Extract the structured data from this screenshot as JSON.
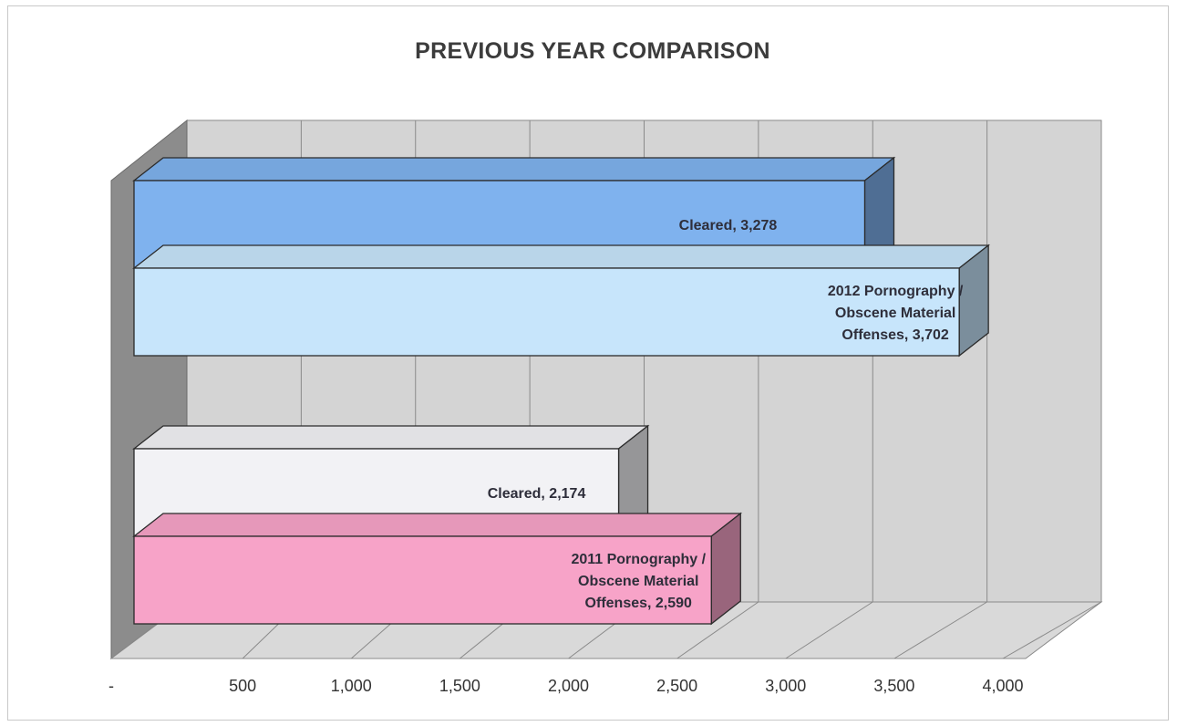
{
  "chart_data": {
    "type": "bar",
    "orientation": "horizontal",
    "three_d": true,
    "title": "PREVIOUS YEAR COMPARISON",
    "xlim": [
      0,
      4000
    ],
    "x_ticks": [
      0,
      500,
      1000,
      1500,
      2000,
      2500,
      3000,
      3500,
      4000
    ],
    "x_tick_labels": [
      "-",
      "500",
      "1,000",
      "1,500",
      "2,000",
      "2,500",
      "3,000",
      "3,500",
      "4,000"
    ],
    "grid": true,
    "legend": "none",
    "groups": [
      {
        "bars": [
          {
            "label_lines": [
              "Cleared,  3,278"
            ],
            "value": 3278,
            "color": "#7fb2ee"
          },
          {
            "label_lines": [
              "2012 Pornography /",
              "Obscene Material",
              "Offenses,  3,702"
            ],
            "value": 3702,
            "color": "#c7e5fb"
          }
        ]
      },
      {
        "bars": [
          {
            "label_lines": [
              "Cleared,  2,174"
            ],
            "value": 2174,
            "color": "#f2f2f5"
          },
          {
            "label_lines": [
              "2011 Pornography /",
              "Obscene Material",
              "Offenses,  2,590"
            ],
            "value": 2590,
            "color": "#f7a3c8"
          }
        ]
      }
    ]
  }
}
